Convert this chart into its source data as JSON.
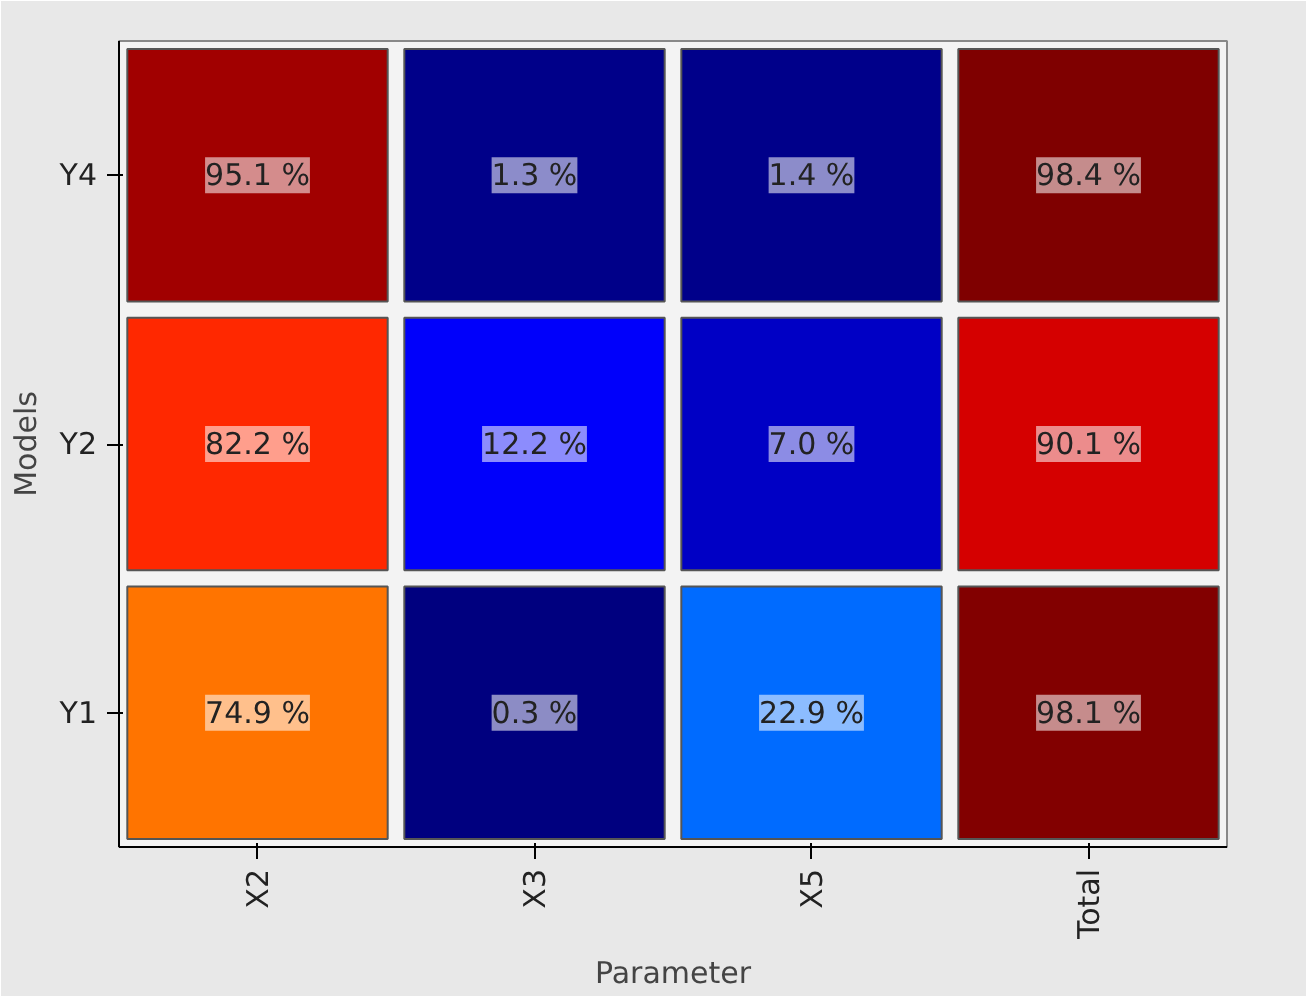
{
  "chart_data": {
    "type": "heatmap",
    "xlabel": "Parameter",
    "ylabel": "Models",
    "categories": [
      "X2",
      "X3",
      "X5",
      "Total"
    ],
    "y_categories": [
      "Y4",
      "Y2",
      "Y1"
    ],
    "cells": [
      [
        95.1,
        1.3,
        1.4,
        98.4
      ],
      [
        82.2,
        12.2,
        7.0,
        90.1
      ],
      [
        74.9,
        0.3,
        22.9,
        98.1
      ]
    ],
    "cell_labels": [
      [
        "95.1 %",
        "1.3 %",
        "1.4 %",
        "98.4 %"
      ],
      [
        "82.2 %",
        "12.2 %",
        "7.0 %",
        "90.1 %"
      ],
      [
        "74.9 %",
        "0.3 %",
        "22.9 %",
        "98.1 %"
      ]
    ]
  }
}
